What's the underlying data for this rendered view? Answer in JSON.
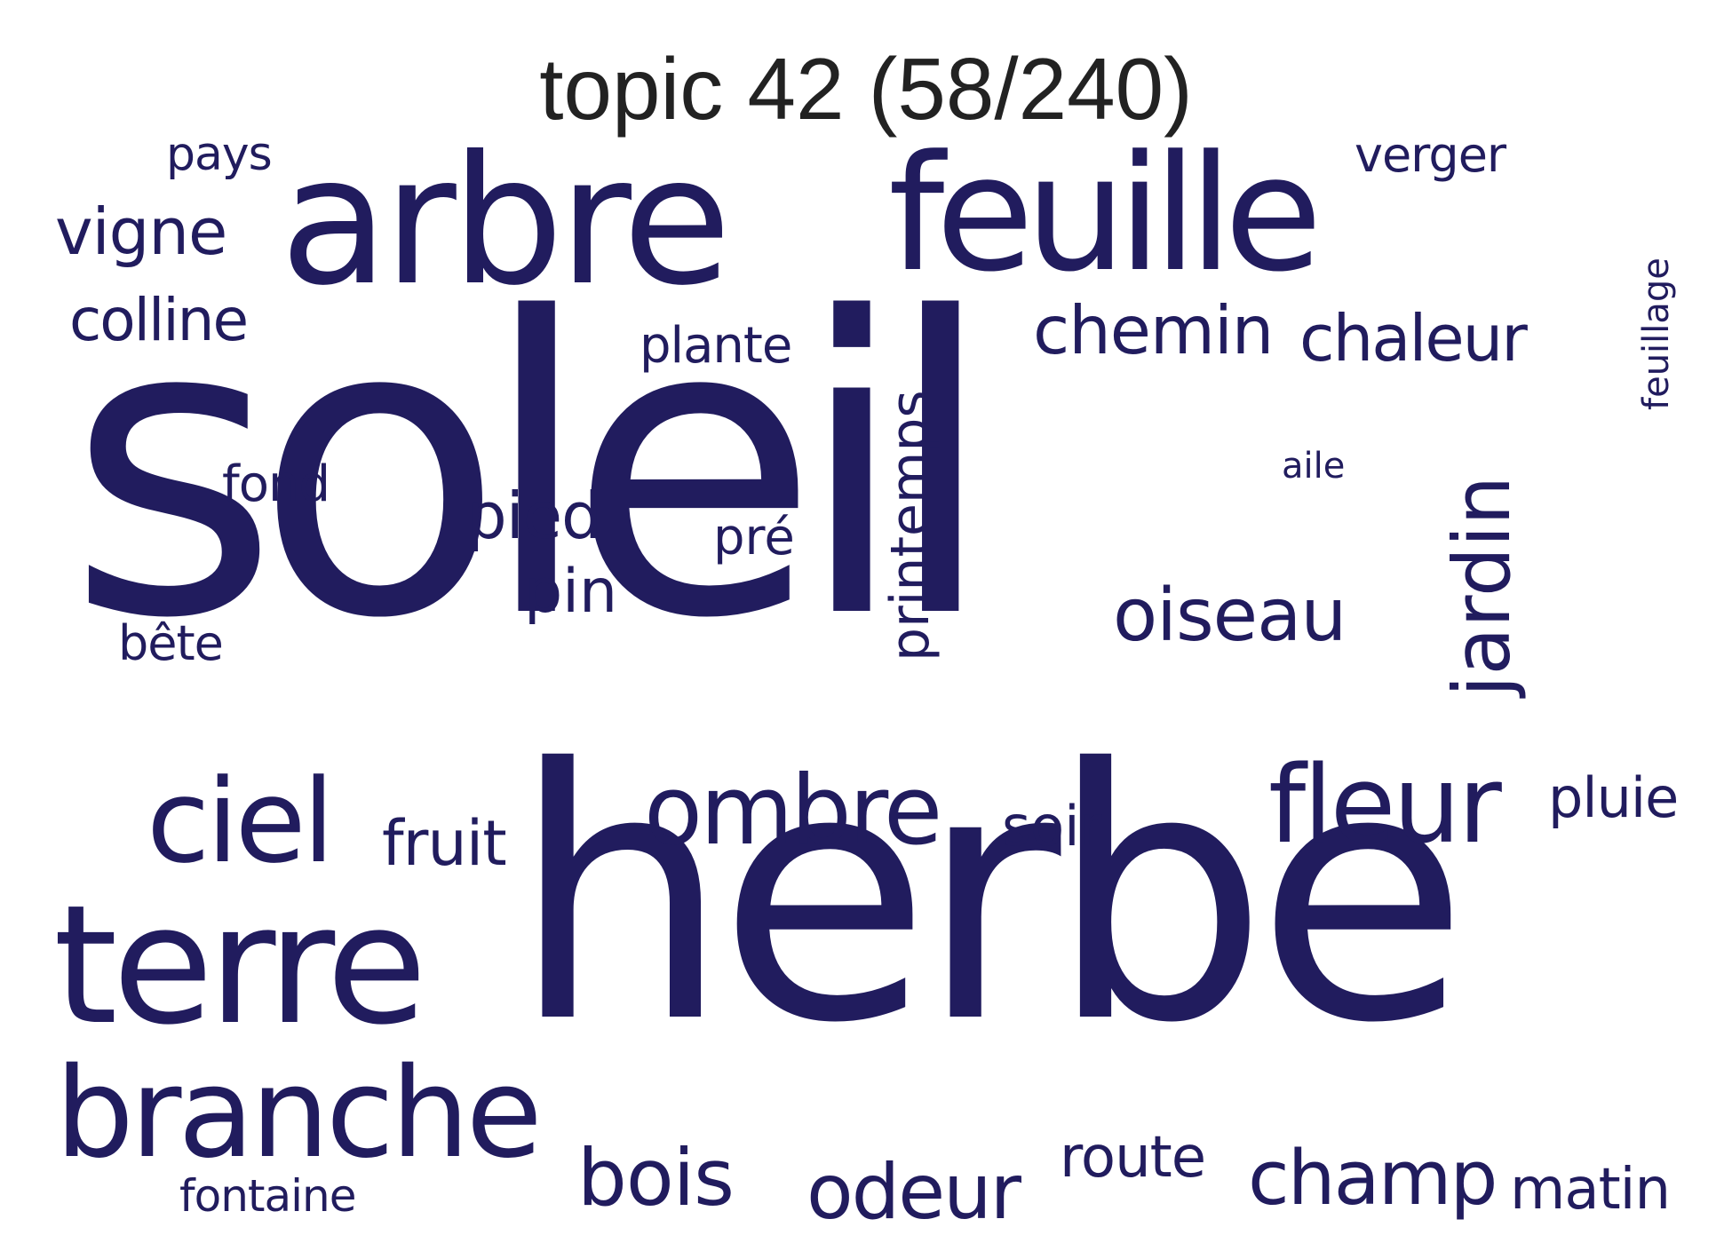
{
  "title": "topic 42 (58/240)",
  "word_color": "#211c5e",
  "title_color": "#222222",
  "words": [
    {
      "text": "soleil",
      "rotated": false
    },
    {
      "text": "herbe",
      "rotated": false
    },
    {
      "text": "arbre",
      "rotated": false
    },
    {
      "text": "feuille",
      "rotated": false
    },
    {
      "text": "terre",
      "rotated": false
    },
    {
      "text": "branche",
      "rotated": false
    },
    {
      "text": "ciel",
      "rotated": false
    },
    {
      "text": "ombre",
      "rotated": false
    },
    {
      "text": "fleur",
      "rotated": false
    },
    {
      "text": "chemin",
      "rotated": false
    },
    {
      "text": "chaleur",
      "rotated": false
    },
    {
      "text": "oiseau",
      "rotated": false
    },
    {
      "text": "jardin",
      "rotated": true
    },
    {
      "text": "printemps",
      "rotated": true
    },
    {
      "text": "champ",
      "rotated": false
    },
    {
      "text": "odeur",
      "rotated": false
    },
    {
      "text": "bois",
      "rotated": false
    },
    {
      "text": "route",
      "rotated": false
    },
    {
      "text": "matin",
      "rotated": false
    },
    {
      "text": "pluie",
      "rotated": false
    },
    {
      "text": "soir",
      "rotated": false
    },
    {
      "text": "fruit",
      "rotated": false
    },
    {
      "text": "pied",
      "rotated": false
    },
    {
      "text": "pin",
      "rotated": false
    },
    {
      "text": "vigne",
      "rotated": false
    },
    {
      "text": "colline",
      "rotated": false
    },
    {
      "text": "plante",
      "rotated": false
    },
    {
      "text": "verger",
      "rotated": false
    },
    {
      "text": "pays",
      "rotated": false
    },
    {
      "text": "fond",
      "rotated": false
    },
    {
      "text": "bête",
      "rotated": false
    },
    {
      "text": "pré",
      "rotated": false
    },
    {
      "text": "fontaine",
      "rotated": false
    },
    {
      "text": "aile",
      "rotated": false
    },
    {
      "text": "feuillage",
      "rotated": true
    }
  ]
}
